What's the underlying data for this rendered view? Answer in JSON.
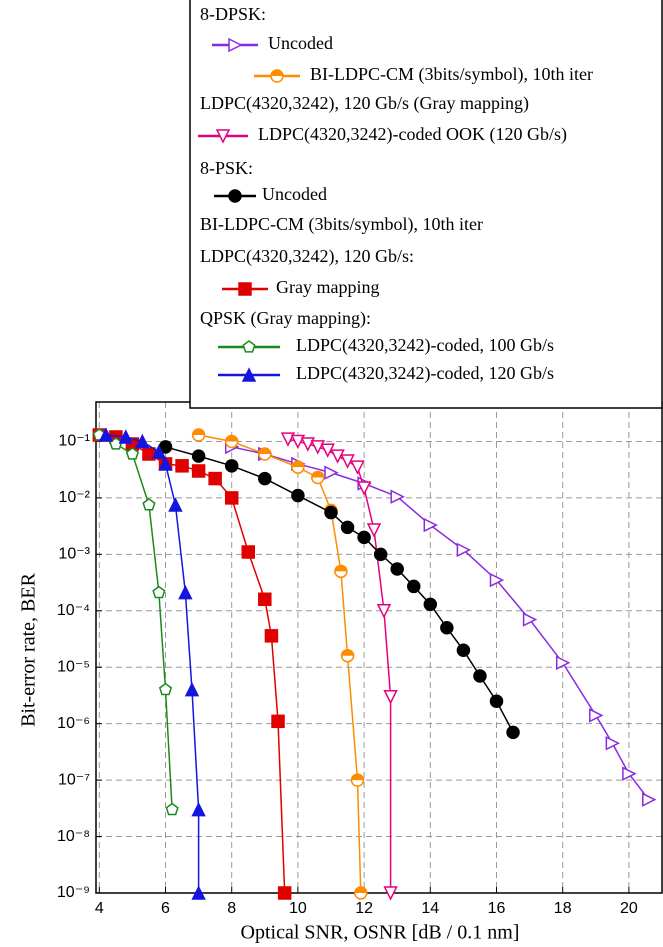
{
  "chart_data": {
    "type": "line",
    "x_label": "Optical SNR, OSNR [dB / 0.1 nm]",
    "y_label": "Bit-error rate, BER",
    "xlim": [
      3.9,
      21
    ],
    "ylim": [
      1e-09,
      0.5
    ],
    "log_y": true,
    "grid": true,
    "xticks": [
      4,
      6,
      8,
      10,
      12,
      14,
      16,
      18,
      20
    ],
    "yticks": [
      {
        "value": 1e-09,
        "label": "10⁻⁹"
      },
      {
        "value": 1e-08,
        "label": "10⁻⁸"
      },
      {
        "value": 1e-07,
        "label": "10⁻⁷"
      },
      {
        "value": 1e-06,
        "label": "10⁻⁶"
      },
      {
        "value": 1e-05,
        "label": "10⁻⁵"
      },
      {
        "value": 0.0001,
        "label": "10⁻⁴"
      },
      {
        "value": 0.001,
        "label": "10⁻³"
      },
      {
        "value": 0.01,
        "label": "10⁻²"
      },
      {
        "value": 0.1,
        "label": "10⁻¹"
      }
    ],
    "legend_text": [
      "8-DPSK:",
      "LDPC(4320,3242), 120 Gb/s (Gray mapping)",
      "8-PSK:",
      "BI-LDPC-CM (3bits/symbol), 10th iter",
      "LDPC(4320,3242), 120 Gb/s:",
      "QPSK (Gray mapping):"
    ],
    "series": [
      {
        "name": "Uncoded",
        "color": "#8a2be2",
        "marker": "tri-right-open",
        "x": [
          8,
          9,
          10,
          11,
          12,
          13,
          14,
          15,
          16,
          17,
          18,
          19,
          19.5,
          20,
          20.6
        ],
        "values": [
          0.08,
          0.06,
          0.04,
          0.028,
          0.018,
          0.0105,
          0.0033,
          0.0012,
          0.00035,
          7e-05,
          1.2e-05,
          1.4e-06,
          4.5e-07,
          1.3e-07,
          4.5e-08
        ]
      },
      {
        "name": "BI-LDPC-CM (3bits/symbol), 10th iter",
        "color": "#ff8c00",
        "marker": "circle-half",
        "x": [
          7,
          8,
          9,
          10,
          10.6,
          11,
          11.3,
          11.5,
          11.8,
          11.9
        ],
        "values": [
          0.13,
          0.1,
          0.06,
          0.035,
          0.023,
          0.006,
          0.0005,
          1.6e-05,
          1e-07,
          1e-09
        ]
      },
      {
        "name": "LDPC(4320,3242)-coded OOK (120 Gb/s)",
        "color": "#e6007e",
        "marker": "tri-down-open",
        "x": [
          9.7,
          10,
          10.3,
          10.6,
          10.9,
          11.2,
          11.5,
          11.8,
          12,
          12.3,
          12.6,
          12.8,
          12.8
        ],
        "values": [
          0.11,
          0.1,
          0.09,
          0.08,
          0.07,
          0.055,
          0.045,
          0.035,
          0.015,
          0.0027,
          0.0001,
          3e-06,
          1e-09
        ]
      },
      {
        "name": "Uncoded",
        "color": "#000000",
        "marker": "circle",
        "x": [
          6,
          7,
          8,
          9,
          10,
          11,
          11.5,
          12,
          12.5,
          13,
          13.5,
          14,
          14.5,
          15,
          15.5,
          16,
          16.5
        ],
        "values": [
          0.08,
          0.055,
          0.037,
          0.022,
          0.011,
          0.0055,
          0.003,
          0.002,
          0.001,
          0.00055,
          0.00027,
          0.00013,
          5e-05,
          2e-05,
          7e-06,
          2.5e-06,
          7e-07
        ]
      },
      {
        "name": "Gray mapping",
        "color": "#e00000",
        "marker": "square",
        "x": [
          4,
          4.5,
          5,
          5.5,
          6,
          6.5,
          7,
          7.5,
          8,
          8.5,
          9,
          9.2,
          9.4,
          9.6
        ],
        "values": [
          0.13,
          0.12,
          0.09,
          0.06,
          0.04,
          0.037,
          0.03,
          0.022,
          0.01,
          0.0011,
          0.00016,
          3.6e-05,
          1.1e-06,
          1e-09
        ]
      },
      {
        "name": "LDPC(4320,3242)-coded, 100 Gb/s",
        "color": "#1a8a1a",
        "marker": "pentagon-open",
        "x": [
          4,
          4.5,
          5,
          5.5,
          5.8,
          6,
          6.2
        ],
        "values": [
          0.13,
          0.09,
          0.06,
          0.0075,
          0.00021,
          4e-06,
          3e-08
        ]
      },
      {
        "name": "LDPC(4320,3242)-coded, 120 Gb/s",
        "color": "#1515e0",
        "marker": "triangle",
        "x": [
          4.2,
          4.8,
          5.3,
          5.8,
          6,
          6.3,
          6.6,
          6.8,
          7,
          7
        ],
        "values": [
          0.13,
          0.12,
          0.1,
          0.065,
          0.04,
          0.0075,
          0.00021,
          4e-06,
          3e-08,
          1e-09
        ]
      }
    ]
  }
}
